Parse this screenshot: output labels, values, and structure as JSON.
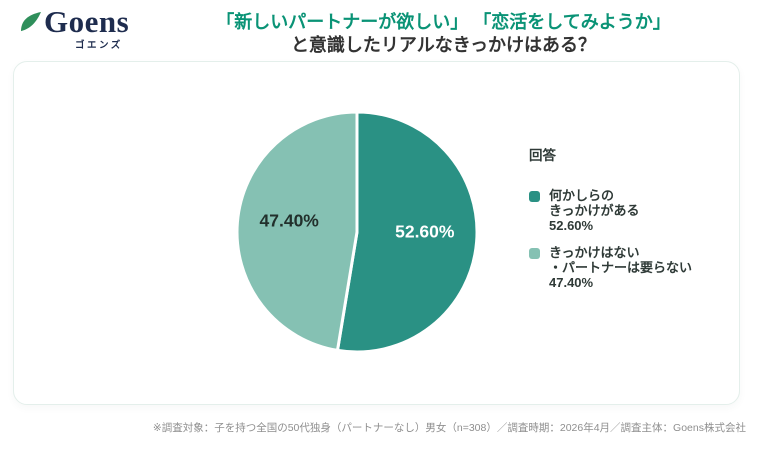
{
  "brand": {
    "name": "Goens",
    "subtitle": "ゴエンズ",
    "name_color": "#1e2c4e",
    "leaf_color": "#2f8f5b"
  },
  "header": {
    "title_line1": "「新しいパートナーが欲しい」 「恋活をしてみようか」",
    "title_line2": "と意識したリアルなきっかけはある？",
    "title_accent_color": "#0a9376",
    "title_text_color": "#333333"
  },
  "legend": {
    "title": "回答",
    "items": [
      {
        "label_line1": "何かしらの",
        "label_line2": "きっかけがある",
        "value": "52.60%",
        "color": "#2a9184"
      },
      {
        "label_line1": "きっかけはない",
        "label_line2": "・パートナーは要らない",
        "value": "47.40%",
        "color": "#85c1b3"
      }
    ]
  },
  "footer": {
    "note": "※調査対象：子を持つ全国の50代独身（パートナーなし）男女（n=308）／調査時期：2026年4月／調査主体：Goens株式会社"
  },
  "chart_data": {
    "type": "pie",
    "title": "「新しいパートナーが欲しい」「恋活をしてみようか」と意識したリアルなきっかけはある？",
    "labels": [
      "何かしらのきっかけがある",
      "きっかけはない・パートナーは要らない"
    ],
    "values": [
      52.6,
      47.4
    ],
    "display_values": [
      "52.60%",
      "47.40%"
    ],
    "colors": [
      "#2a9184",
      "#85c1b3"
    ],
    "slice_label_colors": [
      "#ffffff",
      "#22302c"
    ],
    "start_angle_deg": 0,
    "direction": "clockwise",
    "legend_position": "right",
    "legend_title": "回答"
  }
}
